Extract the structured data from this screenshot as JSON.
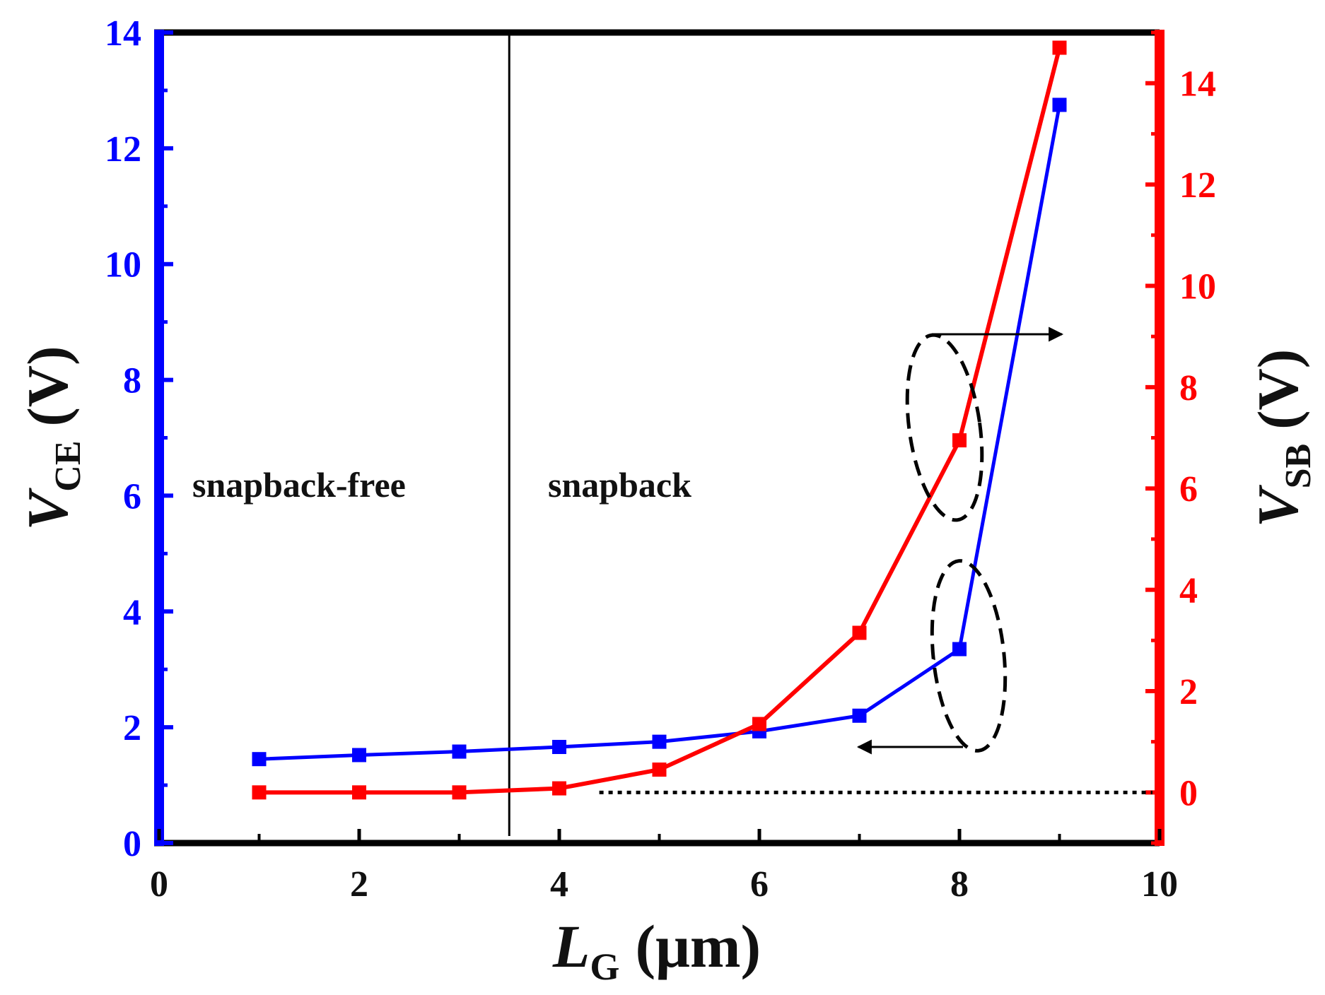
{
  "chart_data": {
    "type": "line",
    "x": [
      1,
      2,
      3,
      4,
      5,
      6,
      7,
      8,
      9
    ],
    "xlim": [
      0,
      10
    ],
    "x_ticks": [
      "0",
      "2",
      "4",
      "6",
      "8",
      "10"
    ],
    "x_label": {
      "italic": "L",
      "sub": "G",
      "units": "(μm)"
    },
    "y_left": {
      "lim": [
        0,
        14
      ],
      "ticks": [
        "0",
        "2",
        "4",
        "6",
        "8",
        "10",
        "12",
        "14"
      ],
      "label": {
        "italic": "V",
        "sub": "CE",
        "units": "(V)"
      },
      "color": "#0000ff"
    },
    "y_right": {
      "lim": [
        -1,
        15
      ],
      "ticks": [
        "0",
        "2",
        "4",
        "6",
        "8",
        "10",
        "12",
        "14"
      ],
      "label": {
        "italic": "V",
        "sub": "SB",
        "units": "(V)"
      },
      "color": "#ff0000"
    },
    "series": [
      {
        "name": "V_CE",
        "axis": "left",
        "color": "#0000ff",
        "values": [
          1.45,
          1.52,
          1.58,
          1.66,
          1.75,
          1.93,
          2.2,
          3.35,
          12.75
        ]
      },
      {
        "name": "V_SB",
        "axis": "right",
        "color": "#ff0000",
        "values": [
          0.0,
          0.0,
          0.0,
          0.08,
          0.45,
          1.35,
          3.15,
          6.95,
          14.7
        ]
      }
    ],
    "reference_line_right_y": 0,
    "divider_x": 3.5,
    "annotations": {
      "left_region": "snapback-free",
      "right_region": "snapback"
    }
  }
}
